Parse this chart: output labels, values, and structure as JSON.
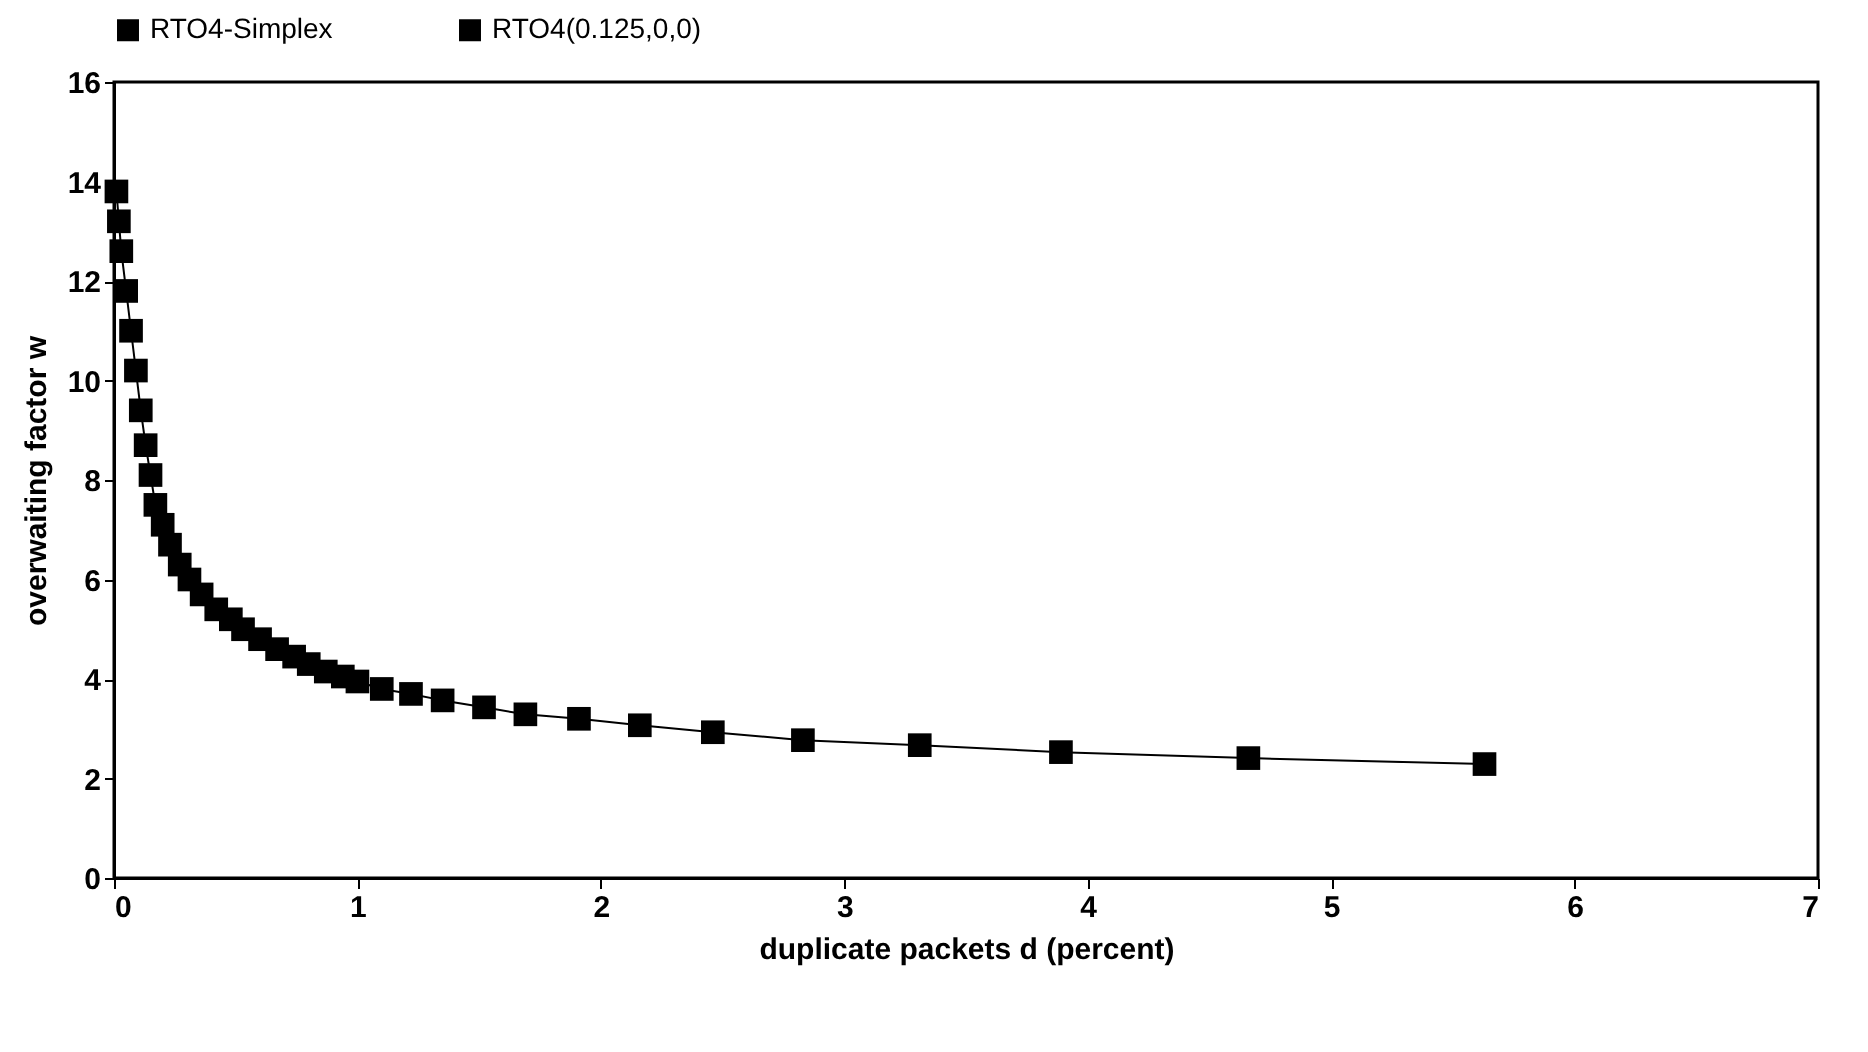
{
  "chart_data": {
    "type": "scatter",
    "xlabel": "duplicate packets d (percent)",
    "ylabel": "overwaiting factor w",
    "xlim": [
      0,
      7
    ],
    "xticks": [
      0,
      1,
      2,
      3,
      4,
      5,
      6,
      7
    ],
    "ylim": [
      0,
      16
    ],
    "yticks": [
      0,
      2,
      4,
      6,
      8,
      10,
      12,
      14,
      16
    ],
    "grid": false,
    "legend": "top",
    "x": [
      0.01,
      0.02,
      0.03,
      0.05,
      0.07,
      0.09,
      0.11,
      0.13,
      0.15,
      0.17,
      0.2,
      0.23,
      0.27,
      0.31,
      0.36,
      0.42,
      0.48,
      0.53,
      0.6,
      0.67,
      0.74,
      0.8,
      0.87,
      0.94,
      1.0,
      1.1,
      1.22,
      1.35,
      1.52,
      1.69,
      1.91,
      2.16,
      2.46,
      2.83,
      3.31,
      3.89,
      4.66,
      5.63
    ],
    "series": [
      {
        "name": "RTO4-Simplex",
        "type": "line",
        "color": "#000000",
        "marker": "none",
        "line_style": "solid",
        "values": [
          13.8,
          13.2,
          12.6,
          11.8,
          11.0,
          10.2,
          9.4,
          8.7,
          8.1,
          7.5,
          7.1,
          6.7,
          6.3,
          6.0,
          5.7,
          5.4,
          5.2,
          5.0,
          4.8,
          4.6,
          4.45,
          4.3,
          4.15,
          4.05,
          3.95,
          3.8,
          3.7,
          3.57,
          3.43,
          3.29,
          3.2,
          3.07,
          2.93,
          2.77,
          2.67,
          2.53,
          2.41,
          2.29
        ]
      },
      {
        "name": "RTO4(0.125,0,0)",
        "type": "scatter",
        "color": "#000000",
        "marker": "square",
        "values": [
          13.8,
          13.2,
          12.6,
          11.8,
          11.0,
          10.2,
          9.4,
          8.7,
          8.1,
          7.5,
          7.1,
          6.7,
          6.3,
          6.0,
          5.7,
          5.4,
          5.2,
          5.0,
          4.8,
          4.6,
          4.45,
          4.3,
          4.15,
          4.05,
          3.95,
          3.8,
          3.7,
          3.57,
          3.43,
          3.29,
          3.2,
          3.07,
          2.93,
          2.77,
          2.67,
          2.53,
          2.41,
          2.29
        ]
      }
    ]
  }
}
